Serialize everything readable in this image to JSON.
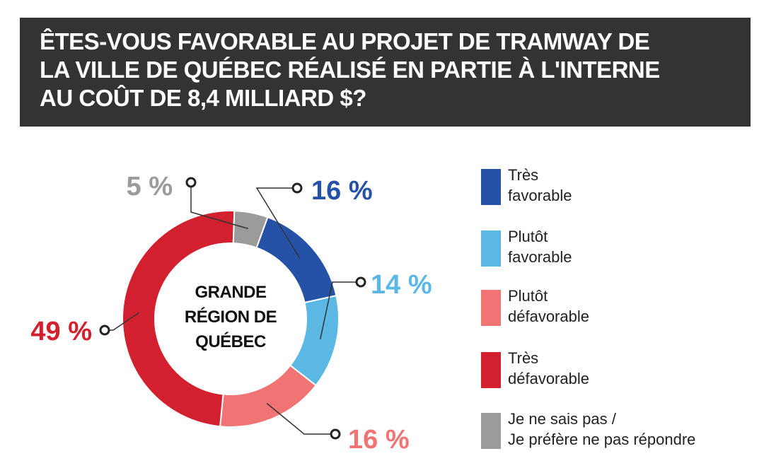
{
  "title": {
    "lines": [
      "ÊTES-VOUS FAVORABLE AU PROJET DE TRAMWAY DE",
      "LA VILLE DE QUÉBEC RÉALISÉ EN PARTIE À L'INTERNE",
      "AU COÛT DE 8,4 MILLIARD $?"
    ]
  },
  "chart_data": {
    "type": "pie",
    "variant": "donut",
    "title": "ÊTES-VOUS FAVORABLE AU PROJET DE TRAMWAY DE LA VILLE DE QUÉBEC RÉALISÉ EN PARTIE À L'INTERNE AU COÛT DE 8,4 MILLIARD $?",
    "center_label": [
      "GRANDE",
      "RÉGION DE",
      "QUÉBEC"
    ],
    "slices": [
      {
        "name": "Très favorable",
        "value": 16,
        "label": "16 %",
        "color": "#2551a6"
      },
      {
        "name": "Plutôt favorable",
        "value": 14,
        "label": "14 %",
        "color": "#5bb8e5"
      },
      {
        "name": "Plutôt défavorable",
        "value": 16,
        "label": "16 %",
        "color": "#f07473"
      },
      {
        "name": "Très défavorable",
        "value": 49,
        "label": "49 %",
        "color": "#d3202f"
      },
      {
        "name": "Je ne sais pas / Je préfère ne pas répondre",
        "value": 5,
        "label": "5 %",
        "color": "#9b9b9b"
      }
    ],
    "legend_position": "right"
  },
  "legend": [
    {
      "lines": [
        "Très",
        "favorable"
      ],
      "color": "#2551a6"
    },
    {
      "lines": [
        "Plutôt",
        "favorable"
      ],
      "color": "#5bb8e5"
    },
    {
      "lines": [
        "Plutôt",
        "défavorable"
      ],
      "color": "#f07473"
    },
    {
      "lines": [
        "Très",
        "défavorable"
      ],
      "color": "#d3202f"
    },
    {
      "lines": [
        "Je ne sais pas /",
        "Je préfère ne pas répondre"
      ],
      "color": "#9b9b9b"
    }
  ]
}
